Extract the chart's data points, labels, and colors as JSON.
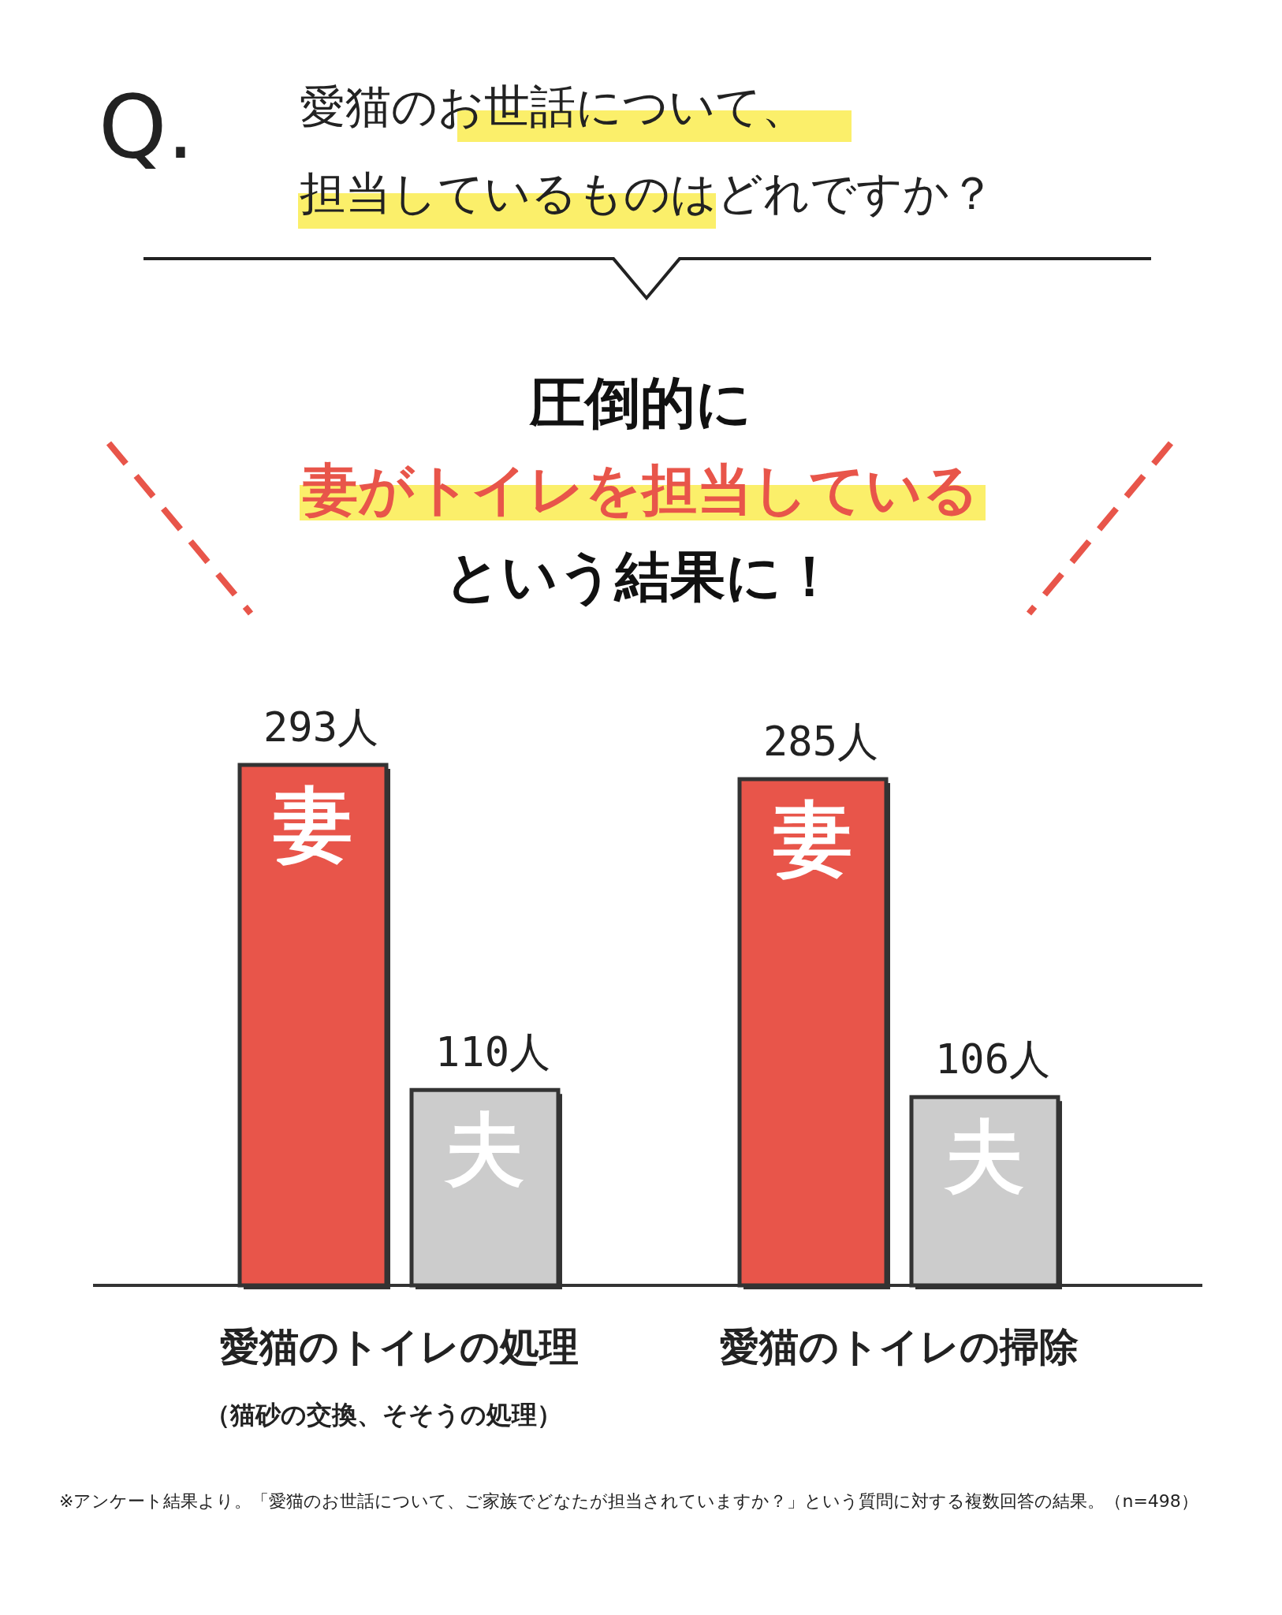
{
  "chart_data": {
    "type": "bar",
    "title": "愛猫のお世話について、",
    "subtitle": "担当しているものはどれですか？",
    "categories": [
      "愛猫のトイレの処理",
      "愛猫のトイレの掃除"
    ],
    "series": [
      {
        "name": "妻",
        "color": "#e8554a",
        "values": [
          293,
          285
        ],
        "value_labels": [
          "293人",
          "285人"
        ]
      },
      {
        "name": "夫",
        "color": "#cccccc",
        "values": [
          110,
          106
        ],
        "value_labels": [
          "110人",
          "106人"
        ]
      }
    ],
    "annotations": [
      "Q.",
      "圧倒的に",
      "妻がトイレを担当している",
      "という結果に！",
      "（猫砂の交換、そそうの処理）",
      "※アンケート結果より。「愛猫のお世話について、ご家族でどなたが担当されていますか？」という質問に対する複数回答の結果。（n=498）"
    ]
  }
}
